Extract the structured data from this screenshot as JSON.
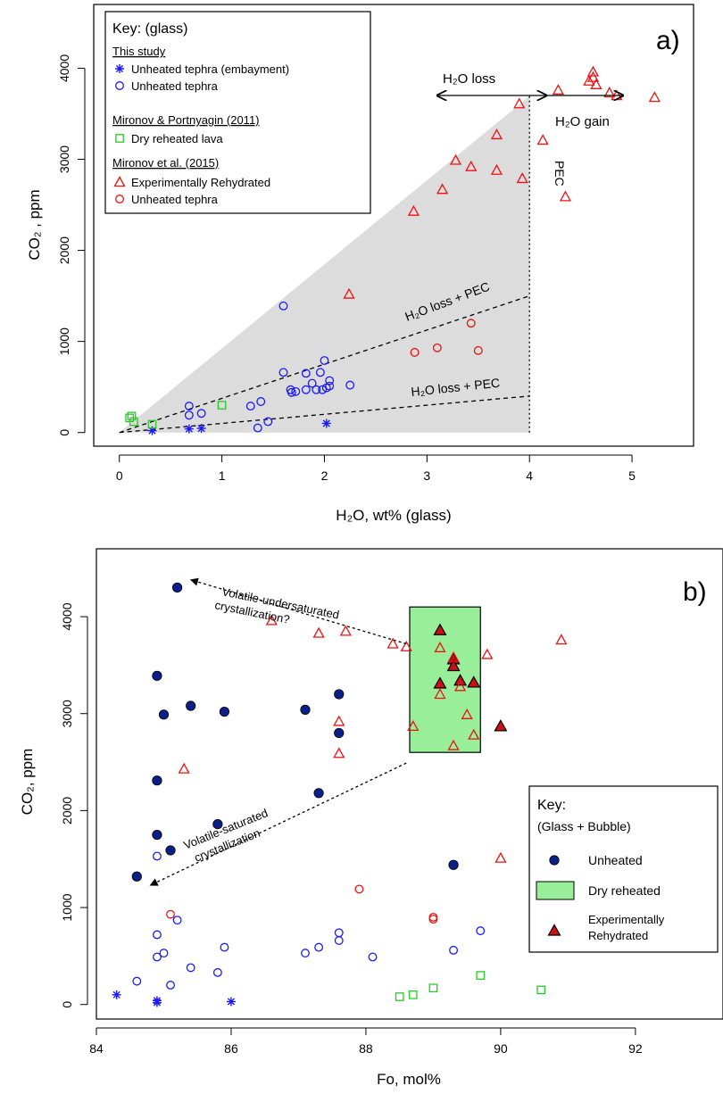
{
  "chart_data": [
    {
      "panel": "a)",
      "type": "scatter",
      "xlabel": "H₂O, wt% (glass)",
      "ylabel": "CO₂ , ppm",
      "xlim": [
        -0.25,
        5.6
      ],
      "ylim": [
        -150,
        4700
      ],
      "xticks": [
        0,
        1,
        2,
        3,
        4,
        5
      ],
      "yticks": [
        0,
        1000,
        2000,
        3000,
        4000
      ],
      "legend_position": "top-left",
      "legend": {
        "title": "Key: (glass)",
        "groups": [
          {
            "heading": "This study",
            "entries": [
              {
                "label": "Unheated tephra (embayment)",
                "marker": "asterisk",
                "color": "#1a1aff"
              },
              {
                "label": "Unheated tephra",
                "marker": "circle-open",
                "color": "#1a1aff"
              }
            ]
          },
          {
            "heading": "Mironov & Portnyagin (2011)",
            "entries": [
              {
                "label": "Dry reheated lava",
                "marker": "square-open",
                "color": "#22cc22"
              }
            ]
          },
          {
            "heading": "Mironov et al. (2015)",
            "entries": [
              {
                "label": "Experimentally Rehydrated",
                "marker": "triangle-open",
                "color": "#ee1111"
              },
              {
                "label": "Unheated tephra",
                "marker": "circle-open",
                "color": "#ee1111"
              }
            ]
          }
        ]
      },
      "shaded_region": [
        [
          0,
          0
        ],
        [
          3.9,
          3600
        ],
        [
          4.0,
          3700
        ],
        [
          4.0,
          0
        ]
      ],
      "series": [
        {
          "marker": "asterisk",
          "color": "#1a1aff",
          "points": [
            [
              0.32,
              20
            ],
            [
              0.68,
              40
            ],
            [
              0.8,
              45
            ],
            [
              2.02,
              100
            ]
          ]
        },
        {
          "marker": "circle-open",
          "color": "#1a1aff",
          "points": [
            [
              0.68,
              290
            ],
            [
              0.68,
              190
            ],
            [
              0.8,
              210
            ],
            [
              1.28,
              290
            ],
            [
              1.38,
              340
            ],
            [
              1.35,
              50
            ],
            [
              1.45,
              120
            ],
            [
              1.6,
              1390
            ],
            [
              1.6,
              660
            ],
            [
              1.67,
              470
            ],
            [
              1.68,
              440
            ],
            [
              1.72,
              450
            ],
            [
              1.82,
              650
            ],
            [
              1.82,
              470
            ],
            [
              1.88,
              540
            ],
            [
              1.92,
              470
            ],
            [
              1.96,
              660
            ],
            [
              1.98,
              470
            ],
            [
              2.0,
              790
            ],
            [
              2.02,
              490
            ],
            [
              2.05,
              570
            ],
            [
              2.05,
              510
            ],
            [
              2.25,
              520
            ]
          ]
        },
        {
          "marker": "square-open",
          "color": "#22cc22",
          "points": [
            [
              0.1,
              160
            ],
            [
              0.12,
              180
            ],
            [
              0.14,
              120
            ],
            [
              0.32,
              90
            ],
            [
              1.0,
              300
            ]
          ]
        },
        {
          "marker": "triangle-open",
          "color": "#ee1111",
          "points": [
            [
              2.24,
              1520
            ],
            [
              2.87,
              2430
            ],
            [
              3.15,
              2670
            ],
            [
              3.28,
              2990
            ],
            [
              3.43,
              2920
            ],
            [
              3.68,
              3270
            ],
            [
              3.68,
              2880
            ],
            [
              3.9,
              3610
            ],
            [
              3.93,
              2790
            ],
            [
              4.13,
              3210
            ],
            [
              4.35,
              2590
            ],
            [
              4.28,
              3760
            ],
            [
              4.58,
              3860
            ],
            [
              4.62,
              3960
            ],
            [
              4.62,
              3900
            ],
            [
              4.65,
              3820
            ],
            [
              4.78,
              3730
            ],
            [
              4.85,
              3700
            ],
            [
              5.22,
              3680
            ]
          ]
        },
        {
          "marker": "circle-open",
          "color": "#ee1111",
          "points": [
            [
              2.88,
              880
            ],
            [
              3.1,
              930
            ],
            [
              3.43,
              1200
            ],
            [
              3.5,
              900
            ]
          ]
        }
      ],
      "lines": [
        {
          "style": "dashed",
          "from": [
            0,
            0
          ],
          "to": [
            4.0,
            1500
          ]
        },
        {
          "style": "dashed",
          "from": [
            0,
            0
          ],
          "to": [
            4.0,
            400
          ]
        },
        {
          "style": "dotted",
          "from": [
            4.0,
            0
          ],
          "to": [
            4.0,
            3700
          ]
        }
      ],
      "annotations": {
        "h2o_loss": "H₂O loss",
        "h2o_gain": "H₂O gain",
        "pec": "PEC",
        "loss_pec_upper": "H₂O loss + PEC",
        "loss_pec_lower": "H₂O loss + PEC"
      }
    },
    {
      "panel": "b)",
      "type": "scatter",
      "xlabel": "Fo, mol%",
      "ylabel": "CO₂, ppm",
      "xlim": [
        84.0,
        93.3
      ],
      "ylim": [
        -150,
        4700
      ],
      "xticks": [
        84,
        86,
        88,
        90,
        92
      ],
      "yticks": [
        0,
        1000,
        2000,
        3000,
        4000
      ],
      "legend_position": "bottom-right",
      "legend": {
        "title": "Key:",
        "subtitle": "(Glass + Bubble)",
        "entries": [
          {
            "label": "Unheated",
            "marker": "circle-filled",
            "color": "#0b1f8a"
          },
          {
            "label": "Dry reheated",
            "marker": "rect-filled",
            "color": "#99ee99"
          },
          {
            "label": "Experimentally",
            "label2": "Rehydrated",
            "marker": "triangle-filled",
            "color": "#cc1111"
          }
        ]
      },
      "dry_reheated_box": {
        "x": [
          88.65,
          89.7
        ],
        "y": [
          2600,
          4100
        ]
      },
      "series": [
        {
          "marker": "circle-filled",
          "color": "#0b1f8a",
          "points": [
            [
              85.2,
              4300
            ],
            [
              84.9,
              3390
            ],
            [
              85.0,
              2990
            ],
            [
              85.4,
              3080
            ],
            [
              85.9,
              3020
            ],
            [
              87.1,
              3040
            ],
            [
              87.6,
              3200
            ],
            [
              87.6,
              2800
            ],
            [
              84.9,
              2310
            ],
            [
              87.3,
              2180
            ],
            [
              85.8,
              1860
            ],
            [
              84.9,
              1750
            ],
            [
              85.1,
              1590
            ],
            [
              84.6,
              1320
            ],
            [
              89.3,
              1440
            ]
          ]
        },
        {
          "marker": "triangle-filled",
          "color": "#cc1111",
          "points": [
            [
              89.1,
              3860
            ],
            [
              89.3,
              3560
            ],
            [
              89.3,
              3490
            ],
            [
              89.4,
              3340
            ],
            [
              89.6,
              3320
            ],
            [
              89.1,
              3310
            ],
            [
              90.0,
              2870
            ]
          ]
        },
        {
          "marker": "triangle-open",
          "color": "#ee1111",
          "points": [
            [
              86.6,
              3960
            ],
            [
              87.3,
              3830
            ],
            [
              87.7,
              3850
            ],
            [
              88.4,
              3720
            ],
            [
              88.6,
              3690
            ],
            [
              89.1,
              3680
            ],
            [
              89.3,
              3580
            ],
            [
              89.8,
              3610
            ],
            [
              89.1,
              3200
            ],
            [
              89.4,
              3280
            ],
            [
              87.6,
              2920
            ],
            [
              87.6,
              2590
            ],
            [
              88.7,
              2870
            ],
            [
              89.5,
              2990
            ],
            [
              89.6,
              2780
            ],
            [
              89.3,
              2670
            ],
            [
              85.3,
              2430
            ],
            [
              90.0,
              1510
            ],
            [
              90.9,
              3760
            ]
          ]
        },
        {
          "marker": "circle-open",
          "color": "#ee1111",
          "points": [
            [
              85.1,
              930
            ],
            [
              87.9,
              1190
            ],
            [
              89.0,
              900
            ],
            [
              89.0,
              880
            ]
          ]
        },
        {
          "marker": "circle-open",
          "color": "#1a1aff",
          "points": [
            [
              84.9,
              1530
            ],
            [
              84.9,
              720
            ],
            [
              85.2,
              870
            ],
            [
              84.9,
              490
            ],
            [
              85.0,
              530
            ],
            [
              84.6,
              240
            ],
            [
              85.1,
              200
            ],
            [
              85.4,
              380
            ],
            [
              85.8,
              330
            ],
            [
              85.9,
              590
            ],
            [
              87.1,
              530
            ],
            [
              87.3,
              590
            ],
            [
              87.6,
              660
            ],
            [
              87.6,
              740
            ],
            [
              88.1,
              490
            ],
            [
              89.3,
              560
            ],
            [
              89.7,
              760
            ]
          ]
        },
        {
          "marker": "asterisk",
          "color": "#1a1aff",
          "points": [
            [
              84.3,
              100
            ],
            [
              84.9,
              40
            ],
            [
              84.9,
              20
            ],
            [
              86.0,
              30
            ]
          ]
        },
        {
          "marker": "square-open",
          "color": "#22cc22",
          "points": [
            [
              88.5,
              80
            ],
            [
              88.7,
              100
            ],
            [
              89.0,
              170
            ],
            [
              89.7,
              300
            ],
            [
              90.6,
              150
            ]
          ]
        }
      ],
      "arrows": [
        {
          "from": [
            88.6,
            3720
          ],
          "to": [
            85.4,
            4380
          ],
          "label": "Volatile-undersaturated",
          "label2": "crystallization?"
        },
        {
          "from": [
            88.6,
            2490
          ],
          "to": [
            84.8,
            1230
          ],
          "label": "Volatile-saturated",
          "label2": "crystallization"
        }
      ]
    }
  ]
}
